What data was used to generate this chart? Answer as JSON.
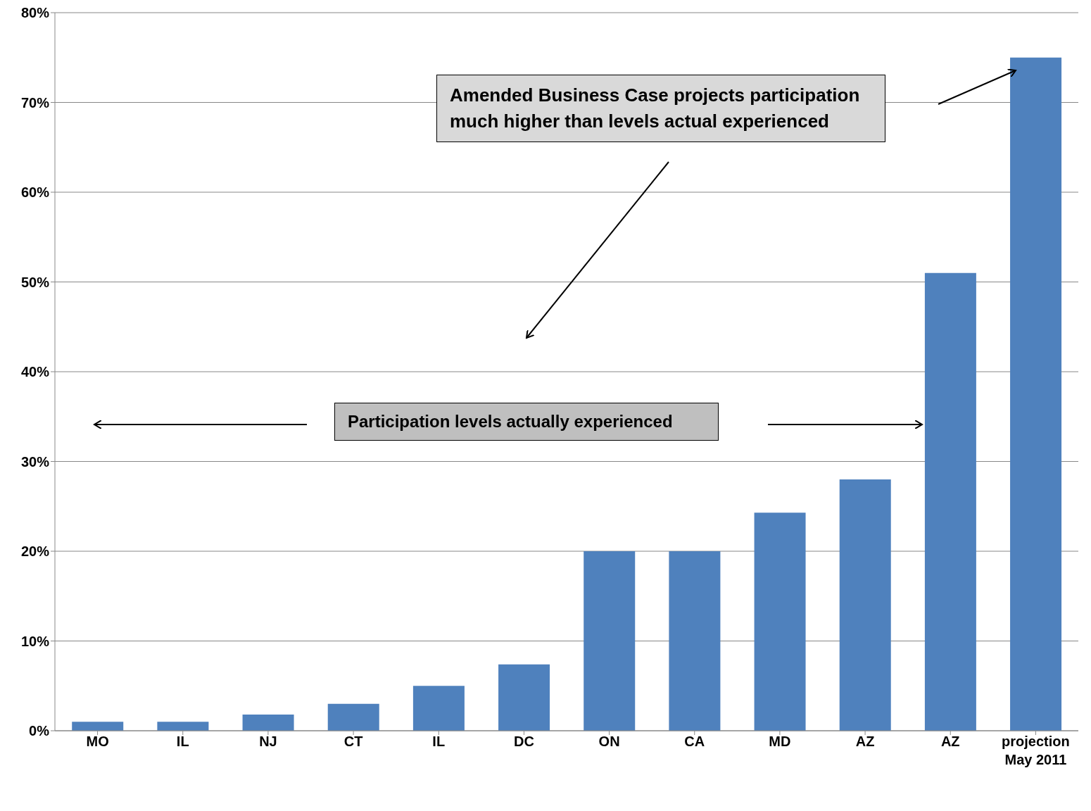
{
  "chart_data": {
    "type": "bar",
    "categories": [
      "MO",
      "IL",
      "NJ",
      "CT",
      "IL",
      "DC",
      "ON",
      "CA",
      "MD",
      "AZ",
      "AZ",
      "projection May 2011"
    ],
    "values": [
      1,
      1,
      1.8,
      3,
      5,
      7.4,
      20,
      20,
      24.3,
      28,
      51,
      75
    ],
    "color": "#4f81bd",
    "ylim": [
      0,
      80
    ],
    "yticks": [
      {
        "value": 0,
        "label": "0%"
      },
      {
        "value": 10,
        "label": "10%"
      },
      {
        "value": 20,
        "label": "20%"
      },
      {
        "value": 30,
        "label": "30%"
      },
      {
        "value": 40,
        "label": "40%"
      },
      {
        "value": 50,
        "label": "50%"
      },
      {
        "value": 60,
        "label": "60%"
      },
      {
        "value": 70,
        "label": "70%"
      },
      {
        "value": 80,
        "label": "80%"
      }
    ],
    "grid": "y",
    "legend": false,
    "annotations": [
      "Amended Business Case  projects participation much higher than levels actual experienced",
      "Participation levels actually experienced"
    ]
  }
}
